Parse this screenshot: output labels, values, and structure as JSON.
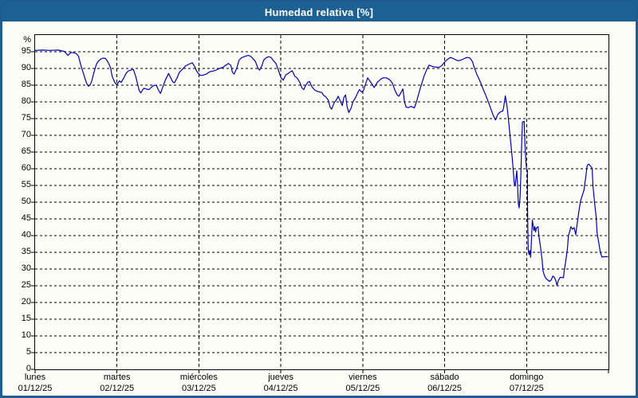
{
  "window": {
    "title": "Humedad relativa [%]"
  },
  "colors": {
    "titlebar_bg": "#1d6094",
    "titlebar_text": "#ffffff",
    "window_border": "#1e5c92",
    "background": "#fcfdf6",
    "axis": "#000000",
    "line": "#0000b2"
  },
  "chart_data": {
    "type": "line",
    "title": "Humedad relativa [%]",
    "ylabel": "%",
    "xlabel": "",
    "ylim": [
      0,
      100
    ],
    "y_ticks": [
      0,
      5,
      10,
      15,
      20,
      25,
      30,
      35,
      40,
      45,
      50,
      55,
      60,
      65,
      70,
      75,
      80,
      85,
      90,
      95
    ],
    "grid": "dashed",
    "legend": "none",
    "x_range_days": [
      0,
      7
    ],
    "x_categories": [
      {
        "weekday": "lunes",
        "date": "01/12/25"
      },
      {
        "weekday": "martes",
        "date": "02/12/25"
      },
      {
        "weekday": "miércoles",
        "date": "03/12/25"
      },
      {
        "weekday": "jueves",
        "date": "04/12/25"
      },
      {
        "weekday": "viernes",
        "date": "05/12/25"
      },
      {
        "weekday": "sábado",
        "date": "06/12/25"
      },
      {
        "weekday": "domingo",
        "date": "07/12/25"
      }
    ],
    "series": [
      {
        "name": "Humedad relativa [%]",
        "color": "#0000b2",
        "x_unit": "days from lunes 01/12/25",
        "y_unit": "%",
        "points": [
          [
            0,
            95.4
          ],
          [
            0.09,
            95.5
          ],
          [
            0.18,
            95.4
          ],
          [
            0.28,
            95.5
          ],
          [
            0.36,
            95.1
          ],
          [
            0.4,
            93.9
          ],
          [
            0.44,
            94.8
          ],
          [
            0.5,
            94.5
          ],
          [
            0.53,
            93.7
          ],
          [
            0.55,
            91.7
          ],
          [
            0.57,
            90.1
          ],
          [
            0.59,
            88.5
          ],
          [
            0.61,
            86.9
          ],
          [
            0.63,
            85.5
          ],
          [
            0.65,
            84.7
          ],
          [
            0.67,
            85.0
          ],
          [
            0.69,
            86.1
          ],
          [
            0.71,
            88.0
          ],
          [
            0.73,
            89.8
          ],
          [
            0.75,
            91.3
          ],
          [
            0.77,
            92.1
          ],
          [
            0.8,
            92.8
          ],
          [
            0.83,
            93.1
          ],
          [
            0.86,
            93.0
          ],
          [
            0.89,
            91.9
          ],
          [
            0.92,
            90.3
          ],
          [
            0.94,
            87.7
          ],
          [
            0.96,
            86.5
          ],
          [
            0.98,
            85.5
          ],
          [
            1.0,
            85.2
          ],
          [
            1.03,
            86.3
          ],
          [
            1.05,
            85.8
          ],
          [
            1.08,
            87.0
          ],
          [
            1.11,
            88.5
          ],
          [
            1.14,
            89.3
          ],
          [
            1.18,
            89.6
          ],
          [
            1.2,
            89.7
          ],
          [
            1.23,
            87.5
          ],
          [
            1.25,
            85.5
          ],
          [
            1.27,
            83.5
          ],
          [
            1.29,
            82.7
          ],
          [
            1.31,
            83.5
          ],
          [
            1.33,
            84.1
          ],
          [
            1.36,
            83.8
          ],
          [
            1.39,
            83.7
          ],
          [
            1.42,
            84.4
          ],
          [
            1.45,
            84.9
          ],
          [
            1.48,
            85.0
          ],
          [
            1.5,
            83.8
          ],
          [
            1.53,
            82.5
          ],
          [
            1.56,
            84.5
          ],
          [
            1.59,
            86.5
          ],
          [
            1.63,
            88.5
          ],
          [
            1.66,
            87.0
          ],
          [
            1.68,
            86.0
          ],
          [
            1.7,
            85.7
          ],
          [
            1.73,
            87.0
          ],
          [
            1.76,
            88.8
          ],
          [
            1.8,
            89.8
          ],
          [
            1.84,
            90.8
          ],
          [
            1.88,
            91.3
          ],
          [
            1.92,
            91.7
          ],
          [
            1.95,
            90.5
          ],
          [
            1.97,
            89.3
          ],
          [
            2.0,
            88.3
          ],
          [
            2.02,
            87.9
          ],
          [
            2.05,
            88.0
          ],
          [
            2.09,
            88.3
          ],
          [
            2.13,
            89.0
          ],
          [
            2.17,
            89.2
          ],
          [
            2.21,
            89.5
          ],
          [
            2.25,
            90.0
          ],
          [
            2.29,
            90.3
          ],
          [
            2.33,
            91.0
          ],
          [
            2.36,
            91.5
          ],
          [
            2.39,
            90.9
          ],
          [
            2.41,
            88.8
          ],
          [
            2.43,
            88.3
          ],
          [
            2.46,
            90.0
          ],
          [
            2.49,
            92.5
          ],
          [
            2.52,
            93.2
          ],
          [
            2.56,
            93.6
          ],
          [
            2.6,
            93.9
          ],
          [
            2.63,
            93.7
          ],
          [
            2.66,
            92.9
          ],
          [
            2.69,
            92.1
          ],
          [
            2.72,
            90.1
          ],
          [
            2.74,
            89.5
          ],
          [
            2.77,
            90.8
          ],
          [
            2.79,
            92.5
          ],
          [
            2.82,
            93.2
          ],
          [
            2.85,
            93.5
          ],
          [
            2.88,
            93.3
          ],
          [
            2.91,
            92.3
          ],
          [
            2.94,
            91.5
          ],
          [
            2.97,
            89.5
          ],
          [
            3.0,
            87.3
          ],
          [
            3.03,
            86.5
          ],
          [
            3.06,
            88.1
          ],
          [
            3.09,
            88.5
          ],
          [
            3.12,
            89.1
          ],
          [
            3.14,
            89.3
          ],
          [
            3.17,
            87.7
          ],
          [
            3.2,
            87.1
          ],
          [
            3.23,
            85.9
          ],
          [
            3.26,
            84.1
          ],
          [
            3.28,
            83.7
          ],
          [
            3.3,
            84.8
          ],
          [
            3.33,
            85.9
          ],
          [
            3.35,
            86.1
          ],
          [
            3.38,
            84.5
          ],
          [
            3.41,
            83.6
          ],
          [
            3.44,
            83.2
          ],
          [
            3.47,
            83.0
          ],
          [
            3.5,
            82.8
          ],
          [
            3.52,
            82.0
          ],
          [
            3.55,
            81.5
          ],
          [
            3.58,
            80.5
          ],
          [
            3.6,
            78.5
          ],
          [
            3.62,
            77.8
          ],
          [
            3.65,
            79.7
          ],
          [
            3.68,
            80.7
          ],
          [
            3.7,
            81.7
          ],
          [
            3.73,
            80.0
          ],
          [
            3.75,
            78.9
          ],
          [
            3.77,
            81.3
          ],
          [
            3.79,
            82.1
          ],
          [
            3.81,
            78.5
          ],
          [
            3.83,
            76.8
          ],
          [
            3.86,
            78.3
          ],
          [
            3.88,
            80.0
          ],
          [
            3.91,
            81.2
          ],
          [
            3.94,
            82.8
          ],
          [
            3.96,
            83.7
          ],
          [
            3.99,
            82.9
          ],
          [
            4.01,
            83.5
          ],
          [
            4.03,
            85.0
          ],
          [
            4.06,
            87.2
          ],
          [
            4.1,
            85.8
          ],
          [
            4.14,
            84.3
          ],
          [
            4.18,
            85.9
          ],
          [
            4.22,
            86.8
          ],
          [
            4.25,
            87.2
          ],
          [
            4.29,
            87.2
          ],
          [
            4.33,
            86.6
          ],
          [
            4.36,
            85.7
          ],
          [
            4.39,
            83.7
          ],
          [
            4.42,
            82.1
          ],
          [
            4.44,
            81.7
          ],
          [
            4.47,
            82.9
          ],
          [
            4.49,
            83.9
          ],
          [
            4.51,
            80.0
          ],
          [
            4.53,
            78.4
          ],
          [
            4.56,
            78.3
          ],
          [
            4.59,
            78.7
          ],
          [
            4.61,
            78.4
          ],
          [
            4.63,
            78.2
          ],
          [
            4.66,
            80.3
          ],
          [
            4.69,
            83.0
          ],
          [
            4.72,
            85.5
          ],
          [
            4.75,
            87.8
          ],
          [
            4.78,
            89.6
          ],
          [
            4.81,
            91.0
          ],
          [
            4.85,
            90.6
          ],
          [
            4.89,
            90.4
          ],
          [
            4.94,
            90.4
          ],
          [
            4.97,
            91.0
          ],
          [
            5.01,
            92.2
          ],
          [
            5.04,
            92.8
          ],
          [
            5.07,
            93.3
          ],
          [
            5.11,
            92.9
          ],
          [
            5.14,
            92.5
          ],
          [
            5.17,
            92.3
          ],
          [
            5.21,
            92.6
          ],
          [
            5.25,
            93.1
          ],
          [
            5.28,
            93.3
          ],
          [
            5.31,
            93.1
          ],
          [
            5.34,
            92.0
          ],
          [
            5.36,
            90.4
          ],
          [
            5.39,
            88.4
          ],
          [
            5.43,
            86.3
          ],
          [
            5.46,
            84.4
          ],
          [
            5.5,
            82.1
          ],
          [
            5.53,
            80.2
          ],
          [
            5.56,
            78.2
          ],
          [
            5.59,
            76.1
          ],
          [
            5.62,
            74.6
          ],
          [
            5.65,
            76.3
          ],
          [
            5.68,
            77.0
          ],
          [
            5.71,
            77.3
          ],
          [
            5.72,
            78.3
          ],
          [
            5.74,
            81.8
          ],
          [
            5.76,
            79.0
          ],
          [
            5.78,
            74.5
          ],
          [
            5.8,
            69.5
          ],
          [
            5.82,
            64.5
          ],
          [
            5.83,
            61.8
          ],
          [
            5.85,
            55.5
          ],
          [
            5.86,
            54.8
          ],
          [
            5.88,
            59.4
          ],
          [
            5.89,
            55.0
          ],
          [
            5.9,
            49.5
          ],
          [
            5.91,
            48.3
          ],
          [
            5.92,
            51.5
          ],
          [
            5.93,
            58.0
          ],
          [
            5.94,
            67.0
          ],
          [
            5.95,
            74.0
          ],
          [
            5.97,
            74.2
          ],
          [
            5.98,
            68.0
          ],
          [
            5.99,
            62.5
          ],
          [
            6.0,
            59.8
          ],
          [
            6.01,
            59.6
          ],
          [
            6.012,
            48.0
          ],
          [
            6.02,
            36.0
          ],
          [
            6.03,
            34.3
          ],
          [
            6.04,
            35.5
          ],
          [
            6.05,
            33.5
          ],
          [
            6.06,
            38.5
          ],
          [
            6.07,
            44.7
          ],
          [
            6.08,
            43.1
          ],
          [
            6.09,
            41.5
          ],
          [
            6.1,
            42.7
          ],
          [
            6.11,
            41.1
          ],
          [
            6.12,
            42.3
          ],
          [
            6.14,
            42.7
          ],
          [
            6.15,
            39.9
          ],
          [
            6.17,
            36.7
          ],
          [
            6.19,
            32.7
          ],
          [
            6.2,
            29.5
          ],
          [
            6.22,
            27.9
          ],
          [
            6.24,
            27.1
          ],
          [
            6.26,
            26.7
          ],
          [
            6.28,
            26.3
          ],
          [
            6.3,
            26.7
          ],
          [
            6.32,
            27.9
          ],
          [
            6.34,
            27.5
          ],
          [
            6.36,
            26.3
          ],
          [
            6.37,
            25.1
          ],
          [
            6.39,
            26.7
          ],
          [
            6.41,
            27.5
          ],
          [
            6.43,
            27.5
          ],
          [
            6.45,
            27.4
          ],
          [
            6.46,
            29.5
          ],
          [
            6.48,
            32.7
          ],
          [
            6.5,
            36.3
          ],
          [
            6.51,
            39.9
          ],
          [
            6.53,
            41.5
          ],
          [
            6.54,
            42.7
          ],
          [
            6.56,
            41.9
          ],
          [
            6.58,
            42.4
          ],
          [
            6.6,
            40.3
          ],
          [
            6.62,
            44.0
          ],
          [
            6.64,
            47.5
          ],
          [
            6.66,
            50.5
          ],
          [
            6.68,
            52.0
          ],
          [
            6.7,
            53.5
          ],
          [
            6.72,
            57.0
          ],
          [
            6.74,
            61.0
          ],
          [
            6.76,
            61.4
          ],
          [
            6.78,
            60.8
          ],
          [
            6.8,
            60.2
          ],
          [
            6.81,
            55.0
          ],
          [
            6.83,
            50.0
          ],
          [
            6.85,
            45.5
          ],
          [
            6.86,
            41.0
          ],
          [
            6.88,
            38.0
          ],
          [
            6.9,
            35.0
          ],
          [
            6.92,
            33.6
          ],
          [
            6.95,
            33.7
          ],
          [
            6.99,
            33.7
          ]
        ]
      }
    ]
  }
}
